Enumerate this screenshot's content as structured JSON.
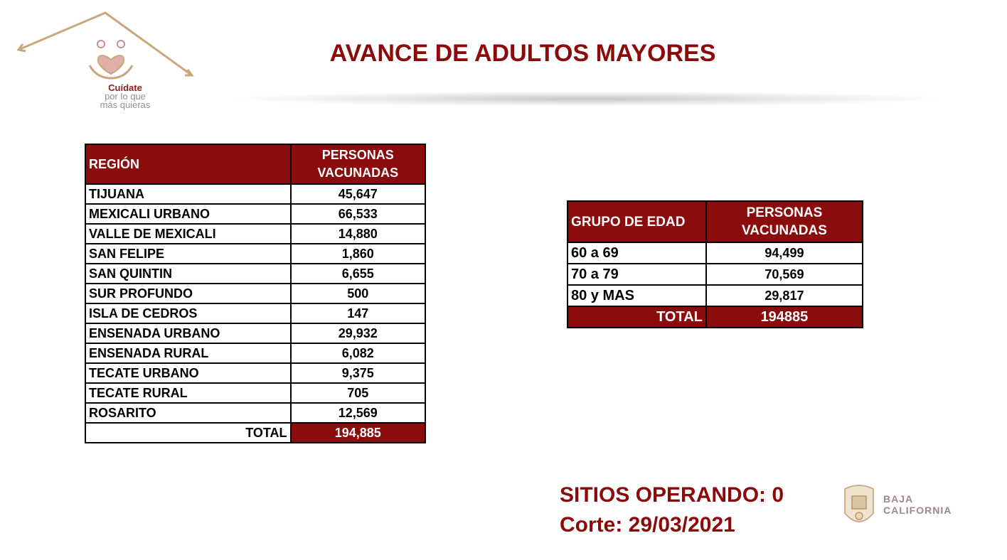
{
  "logo": {
    "line1": "Cuídate",
    "line2": "por lo que",
    "line3": "más quieras",
    "icon": "family-heart-icon"
  },
  "title": "AVANCE DE ADULTOS MAYORES",
  "region_table": {
    "headers": {
      "col1": "REGIÓN",
      "col2": "PERSONAS VACUNADAS"
    },
    "rows": [
      {
        "region": "TIJUANA",
        "value": "45,647"
      },
      {
        "region": "MEXICALI URBANO",
        "value": "66,533"
      },
      {
        "region": "VALLE DE MEXICALI",
        "value": "14,880"
      },
      {
        "region": "SAN FELIPE",
        "value": "1,860"
      },
      {
        "region": "SAN QUINTIN",
        "value": "6,655"
      },
      {
        "region": "SUR PROFUNDO",
        "value": "500"
      },
      {
        "region": "ISLA DE CEDROS",
        "value": "147"
      },
      {
        "region": "ENSENADA URBANO",
        "value": "29,932"
      },
      {
        "region": "ENSENADA RURAL",
        "value": "6,082"
      },
      {
        "region": "TECATE URBANO",
        "value": "9,375"
      },
      {
        "region": "TECATE RURAL",
        "value": "705"
      },
      {
        "region": "ROSARITO",
        "value": "12,569"
      }
    ],
    "total_label": "TOTAL",
    "total_value": "194,885"
  },
  "age_table": {
    "headers": {
      "col1": "GRUPO DE EDAD",
      "col2": "PERSONAS VACUNADAS"
    },
    "rows": [
      {
        "group": "60 a 69",
        "value": "94,499"
      },
      {
        "group": "70 a 79",
        "value": "70,569"
      },
      {
        "group": "80 y MAS",
        "value": "29,817"
      }
    ],
    "total_label": "TOTAL",
    "total_value": "194885"
  },
  "footer": {
    "sites": "SITIOS OPERANDO: 0",
    "cutoff": "Corte: 29/03/2021"
  },
  "bc_logo": {
    "line1": "BAJA",
    "line2": "CALIFORNIA",
    "icon": "state-seal-icon"
  },
  "colors": {
    "accent": "#8b0c0c",
    "title": "#8b0a0a"
  }
}
